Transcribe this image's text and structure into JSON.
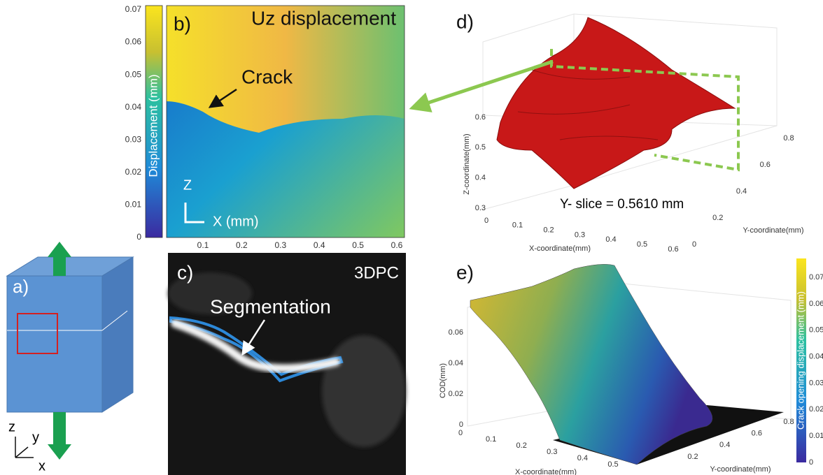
{
  "panel_a": {
    "label": "a)",
    "axes": [
      "z",
      "y",
      "x"
    ]
  },
  "panel_b": {
    "label": "b)",
    "title": "Uz displacement",
    "annotation": "Crack",
    "colorbar_label": "Displacement (mm)",
    "colorbar_ticks": [
      "0",
      "0.01",
      "0.02",
      "0.03",
      "0.04",
      "0.05",
      "0.06",
      "0.07"
    ],
    "x_ticks": [
      "0.1",
      "0.2",
      "0.3",
      "0.4",
      "0.5",
      "0.6"
    ],
    "axis_z": "Z",
    "axis_x": "X (mm)"
  },
  "panel_c": {
    "label": "c)",
    "title": "3DPC",
    "annotation": "Segmentation"
  },
  "panel_d": {
    "label": "d)",
    "z_title": "Z-coordinate(mm)",
    "x_title": "X-coordinate(mm)",
    "y_title": "Y-coordinate(mm)",
    "z_ticks": [
      "0.3",
      "0.4",
      "0.5",
      "0.6"
    ],
    "x_ticks": [
      "0",
      "0.1",
      "0.2",
      "0.3",
      "0.4",
      "0.5",
      "0.6"
    ],
    "y_ticks": [
      "0",
      "0.2",
      "0.4",
      "0.6",
      "0.8"
    ],
    "annotation": "Y- slice = 0.5610 mm"
  },
  "panel_e": {
    "label": "e)",
    "z_title": "COD(mm)",
    "x_title": "X-coordinate(mm)",
    "y_title": "Y-coordinate(mm)",
    "z_ticks": [
      "0",
      "0.02",
      "0.04",
      "0.06"
    ],
    "x_ticks": [
      "0",
      "0.1",
      "0.2",
      "0.3",
      "0.4",
      "0.5"
    ],
    "y_ticks": [
      "0.2",
      "0.4",
      "0.6",
      "0.8"
    ],
    "colorbar_label": "Crack opening displacement (mm)",
    "colorbar_ticks": [
      "0",
      "0.01",
      "0.02",
      "0.03",
      "0.04",
      "0.05",
      "0.06",
      "0.07"
    ]
  }
}
